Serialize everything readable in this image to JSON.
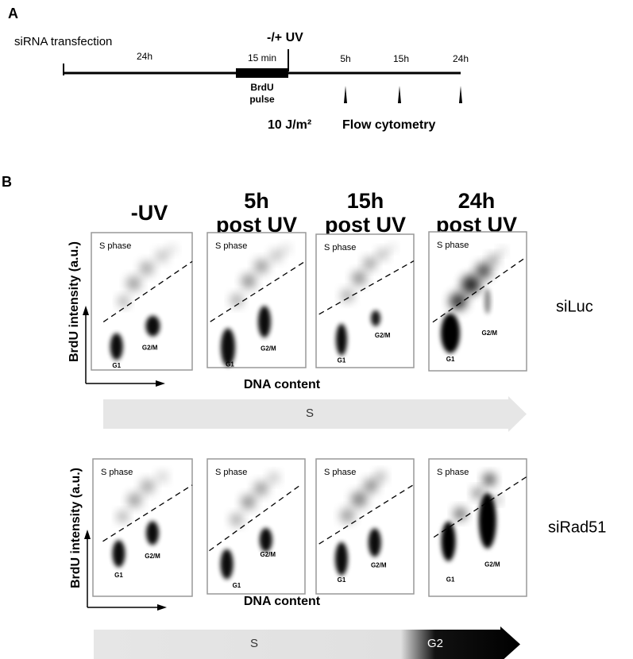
{
  "panel_a": {
    "label": "A",
    "siRNA": "siRNA transfection",
    "interval": "24h",
    "pulse_duration": "15 min",
    "pulse_label": [
      "BrdU",
      "pulse"
    ],
    "uv": "-/+ UV",
    "timepoints": [
      "5h",
      "15h",
      "24h"
    ],
    "dose": "10 J/m²",
    "readout": "Flow cytometry"
  },
  "panel_b": {
    "label": "B",
    "columns": [
      [
        "-UV"
      ],
      [
        "5h",
        "post UV"
      ],
      [
        "15h",
        "post UV"
      ],
      [
        "24h",
        "post UV"
      ]
    ],
    "rows": [
      {
        "name": "siLuc",
        "phase_bar": [
          "S"
        ]
      },
      {
        "name": "siRad51",
        "phase_bar": [
          "S",
          "G2"
        ]
      }
    ],
    "plot_labels": {
      "s_phase": "S phase",
      "g1": "G1",
      "g2m": "G2/M"
    },
    "y_axis": "BrdU intensity (a.u.)",
    "x_axis": "DNA content"
  }
}
